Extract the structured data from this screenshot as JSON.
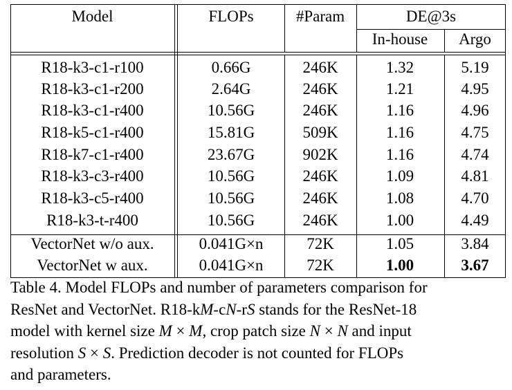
{
  "table": {
    "headers": {
      "model": "Model",
      "flops": "FLOPs",
      "params": "#Param",
      "de": "DE@3s",
      "inhouse": "In-house",
      "argo": "Argo"
    },
    "rows": [
      {
        "model": "R18-k3-c1-r100",
        "flops": "0.66G",
        "params": "246K",
        "inhouse": "1.32",
        "argo": "5.19"
      },
      {
        "model": "R18-k3-c1-r200",
        "flops": "2.64G",
        "params": "246K",
        "inhouse": "1.21",
        "argo": "4.95"
      },
      {
        "model": "R18-k3-c1-r400",
        "flops": "10.56G",
        "params": "246K",
        "inhouse": "1.16",
        "argo": "4.96"
      },
      {
        "model": "R18-k5-c1-r400",
        "flops": "15.81G",
        "params": "509K",
        "inhouse": "1.16",
        "argo": "4.75"
      },
      {
        "model": "R18-k7-c1-r400",
        "flops": "23.67G",
        "params": "902K",
        "inhouse": "1.16",
        "argo": "4.74"
      },
      {
        "model": "R18-k3-c3-r400",
        "flops": "10.56G",
        "params": "246K",
        "inhouse": "1.09",
        "argo": "4.81"
      },
      {
        "model": "R18-k3-c5-r400",
        "flops": "10.56G",
        "params": "246K",
        "inhouse": "1.08",
        "argo": "4.70"
      },
      {
        "model": "R18-k3-t-r400",
        "flops": "10.56G",
        "params": "246K",
        "inhouse": "1.00",
        "argo": "4.49"
      },
      {
        "model": "VectorNet w/o aux.",
        "flops": "0.041G×n",
        "params": "72K",
        "inhouse": "1.05",
        "argo": "3.84"
      },
      {
        "model": "VectorNet w aux.",
        "flops": "0.041G×n",
        "params": "72K",
        "inhouse": "1.00",
        "argo": "3.67"
      }
    ]
  },
  "caption": {
    "l1": "Table 4. Model FLOPs and number of parameters comparison for",
    "l2_a": "ResNet and VectorNet. R18-k",
    "l2_M": "M",
    "l2_b": "-c",
    "l2_N": "N",
    "l2_c": "-r",
    "l2_S": "S",
    "l2_d": " stands for the ResNet-18",
    "l3_a": "model with kernel size ",
    "l3_m1": "M",
    "l3_x1": " × ",
    "l3_m2": "M",
    "l3_b": ", crop patch size ",
    "l3_n1": "N",
    "l3_x2": " × ",
    "l3_n2": "N",
    "l3_c": " and input",
    "l4_a": "resolution ",
    "l4_s1": "S",
    "l4_x": " × ",
    "l4_s2": "S",
    "l4_b": ".  Prediction decoder is not counted for FLOPs",
    "l5": "and parameters."
  }
}
